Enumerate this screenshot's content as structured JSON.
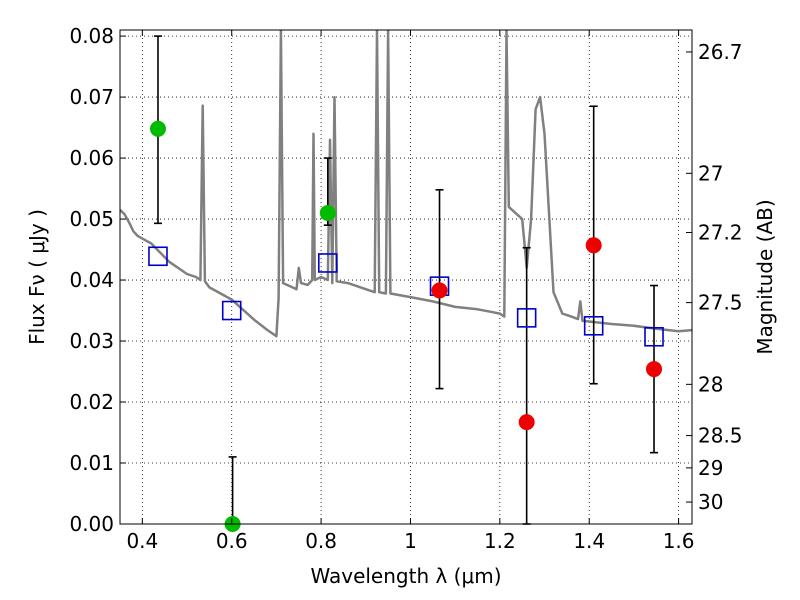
{
  "chart_data": {
    "type": "scatter",
    "title": "",
    "xlabel": "Wavelength  λ (μm)",
    "ylabel": "Flux  Fν  ( μJy )",
    "y2label": "Magnitude (AB)",
    "xlim": [
      0.35,
      1.63
    ],
    "ylim": [
      0.0,
      0.081
    ],
    "grid": true,
    "x_ticks": [
      0.4,
      0.6,
      0.8,
      1.0,
      1.2,
      1.4,
      1.6
    ],
    "x_tick_labels": [
      "0.4",
      "0.6",
      "0.8",
      "1",
      "1.2",
      "1.4",
      "1.6"
    ],
    "y_ticks": [
      0.0,
      0.01,
      0.02,
      0.03,
      0.04,
      0.05,
      0.06,
      0.07,
      0.08
    ],
    "y_tick_labels": [
      "0.00",
      "0.01",
      "0.02",
      "0.03",
      "0.04",
      "0.05",
      "0.06",
      "0.07",
      "0.08"
    ],
    "mag_ticks": [
      {
        "label": "26.7",
        "flux": 0.0774
      },
      {
        "label": "27",
        "flux": 0.0575
      },
      {
        "label": "27.2",
        "flux": 0.0478
      },
      {
        "label": "27.5",
        "flux": 0.0363
      },
      {
        "label": "28",
        "flux": 0.0229
      },
      {
        "label": "28.5",
        "flux": 0.0145
      },
      {
        "label": "29",
        "flux": 0.0092
      },
      {
        "label": "30",
        "flux": 0.0036
      }
    ],
    "series": [
      {
        "role": "model-spectrum",
        "style": "line",
        "color": "#808080",
        "points": [
          [
            0.35,
            0.0515
          ],
          [
            0.36,
            0.0508
          ],
          [
            0.37,
            0.0495
          ],
          [
            0.38,
            0.048
          ],
          [
            0.39,
            0.0472
          ],
          [
            0.4,
            0.0468
          ],
          [
            0.42,
            0.046
          ],
          [
            0.44,
            0.0445
          ],
          [
            0.46,
            0.043
          ],
          [
            0.48,
            0.042
          ],
          [
            0.5,
            0.041
          ],
          [
            0.52,
            0.0405
          ],
          [
            0.53,
            0.04
          ],
          [
            0.535,
            0.0686
          ],
          [
            0.54,
            0.0398
          ],
          [
            0.55,
            0.0388
          ],
          [
            0.6,
            0.0368
          ],
          [
            0.65,
            0.0335
          ],
          [
            0.68,
            0.0318
          ],
          [
            0.7,
            0.0308
          ],
          [
            0.705,
            0.037
          ],
          [
            0.71,
            0.081
          ],
          [
            0.715,
            0.0395
          ],
          [
            0.73,
            0.039
          ],
          [
            0.745,
            0.0385
          ],
          [
            0.75,
            0.042
          ],
          [
            0.755,
            0.0395
          ],
          [
            0.77,
            0.0392
          ],
          [
            0.78,
            0.04
          ],
          [
            0.783,
            0.064
          ],
          [
            0.786,
            0.04
          ],
          [
            0.8,
            0.0405
          ],
          [
            0.815,
            0.04
          ],
          [
            0.82,
            0.063
          ],
          [
            0.825,
            0.0395
          ],
          [
            0.83,
            0.07
          ],
          [
            0.835,
            0.0398
          ],
          [
            0.86,
            0.0395
          ],
          [
            0.9,
            0.0385
          ],
          [
            0.92,
            0.038
          ],
          [
            0.925,
            0.081
          ],
          [
            0.93,
            0.038
          ],
          [
            0.945,
            0.0378
          ],
          [
            0.95,
            0.081
          ],
          [
            0.955,
            0.0378
          ],
          [
            1.0,
            0.0372
          ],
          [
            1.05,
            0.0365
          ],
          [
            1.1,
            0.0356
          ],
          [
            1.15,
            0.0352
          ],
          [
            1.18,
            0.0348
          ],
          [
            1.2,
            0.0345
          ],
          [
            1.21,
            0.034
          ],
          [
            1.215,
            0.081
          ],
          [
            1.22,
            0.052
          ],
          [
            1.25,
            0.05
          ],
          [
            1.26,
            0.042
          ],
          [
            1.27,
            0.05
          ],
          [
            1.28,
            0.068
          ],
          [
            1.29,
            0.07
          ],
          [
            1.3,
            0.064
          ],
          [
            1.32,
            0.038
          ],
          [
            1.34,
            0.0345
          ],
          [
            1.36,
            0.034
          ],
          [
            1.375,
            0.0336
          ],
          [
            1.38,
            0.0365
          ],
          [
            1.385,
            0.0333
          ],
          [
            1.4,
            0.0332
          ],
          [
            1.45,
            0.0328
          ],
          [
            1.5,
            0.0325
          ],
          [
            1.55,
            0.032
          ],
          [
            1.6,
            0.0316
          ],
          [
            1.63,
            0.0318
          ]
        ]
      },
      {
        "role": "model-photometry",
        "style": "open-square",
        "color": "#0000cc",
        "points": [
          [
            0.435,
            0.0439
          ],
          [
            0.6,
            0.035
          ],
          [
            0.815,
            0.0428
          ],
          [
            1.065,
            0.039
          ],
          [
            1.26,
            0.0338
          ],
          [
            1.41,
            0.0325
          ],
          [
            1.545,
            0.0307
          ]
        ]
      },
      {
        "role": "green-observations",
        "style": "filled-circle",
        "color": "#00bb00",
        "points": [
          {
            "x": 0.435,
            "y": 0.0648,
            "ylo": 0.0493,
            "yhi": 0.08
          },
          {
            "x": 0.602,
            "y": 0.0,
            "ylo": 0.0,
            "yhi": 0.011
          },
          {
            "x": 0.815,
            "y": 0.051,
            "ylo": 0.049,
            "yhi": 0.06
          }
        ]
      },
      {
        "role": "red-observations",
        "style": "filled-circle",
        "color": "#ee0000",
        "points": [
          {
            "x": 1.065,
            "y": 0.0383,
            "ylo": 0.0222,
            "yhi": 0.0548
          },
          {
            "x": 1.26,
            "y": 0.0167,
            "ylo": 0.0,
            "yhi": 0.0453
          },
          {
            "x": 1.41,
            "y": 0.0457,
            "ylo": 0.023,
            "yhi": 0.0685
          },
          {
            "x": 1.545,
            "y": 0.0254,
            "ylo": 0.0117,
            "yhi": 0.0391
          }
        ]
      }
    ]
  }
}
